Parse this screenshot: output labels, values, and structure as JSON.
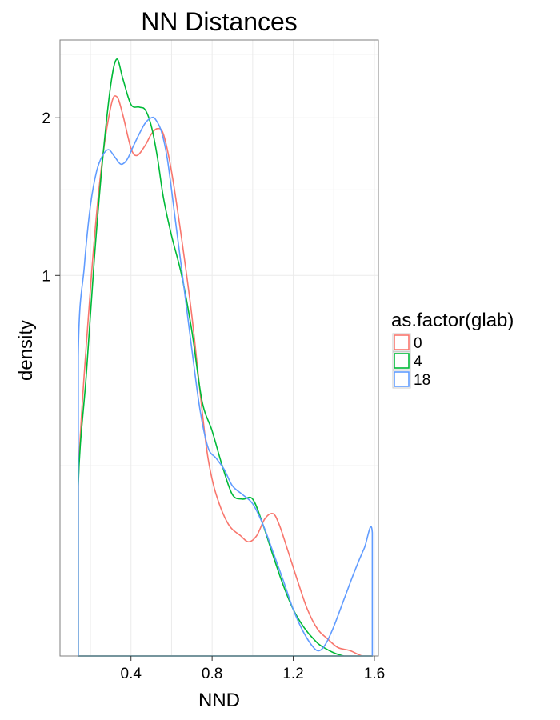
{
  "chart_data": {
    "type": "line",
    "title": "NN Distances",
    "xlabel": "NND",
    "ylabel": "density",
    "x_scale": "linear",
    "y_scale": "sqrt",
    "xlim": [
      0.05,
      1.62
    ],
    "ylim": [
      0.0,
      2.62
    ],
    "x_ticks": [
      0.4,
      0.8,
      1.2,
      1.6
    ],
    "x_tick_labels": [
      "0.4",
      "0.8",
      "1.2",
      "1.6"
    ],
    "y_ticks": [
      1,
      2
    ],
    "y_tick_labels": [
      "1",
      "2"
    ],
    "grid": true,
    "legend": {
      "title": "as.factor(glab)",
      "position": "right"
    },
    "series": [
      {
        "name": "0",
        "color": "#f8766d",
        "x": [
          0.14,
          0.14,
          0.2,
          0.25,
          0.3,
          0.33,
          0.36,
          0.4,
          0.43,
          0.47,
          0.5,
          0.53,
          0.56,
          0.6,
          0.65,
          0.7,
          0.75,
          0.78,
          0.82,
          0.88,
          0.94,
          0.98,
          1.02,
          1.06,
          1.1,
          1.13,
          1.17,
          1.22,
          1.27,
          1.32,
          1.37,
          1.42,
          1.48,
          1.54,
          1.59
        ],
        "y": [
          0.0,
          0.21,
          0.93,
          1.6,
          2.08,
          2.16,
          2.02,
          1.78,
          1.73,
          1.8,
          1.88,
          1.92,
          1.88,
          1.62,
          1.2,
          0.8,
          0.42,
          0.27,
          0.18,
          0.12,
          0.1,
          0.09,
          0.1,
          0.13,
          0.14,
          0.12,
          0.08,
          0.04,
          0.015,
          0.005,
          0.002,
          0.0005,
          0.0002,
          0.0,
          0.0
        ]
      },
      {
        "name": "4",
        "color": "#00ba38",
        "x": [
          0.14,
          0.14,
          0.18,
          0.22,
          0.26,
          0.3,
          0.33,
          0.36,
          0.4,
          0.44,
          0.47,
          0.5,
          0.53,
          0.56,
          0.6,
          0.65,
          0.7,
          0.75,
          0.8,
          0.85,
          0.9,
          0.95,
          1.0,
          1.05,
          1.1,
          1.15,
          1.2,
          1.25,
          1.3,
          1.35,
          1.45,
          1.59
        ],
        "y": [
          0.0,
          0.2,
          0.55,
          1.1,
          1.7,
          2.25,
          2.46,
          2.3,
          2.1,
          2.08,
          2.06,
          1.94,
          1.72,
          1.45,
          1.22,
          1.0,
          0.73,
          0.45,
          0.35,
          0.25,
          0.18,
          0.17,
          0.17,
          0.12,
          0.07,
          0.035,
          0.015,
          0.006,
          0.002,
          0.0005,
          0.0,
          0.0
        ]
      },
      {
        "name": "18",
        "color": "#619cff",
        "x": [
          0.14,
          0.14,
          0.17,
          0.2,
          0.23,
          0.26,
          0.29,
          0.32,
          0.35,
          0.38,
          0.41,
          0.44,
          0.47,
          0.5,
          0.52,
          0.55,
          0.58,
          0.62,
          0.66,
          0.7,
          0.74,
          0.78,
          0.82,
          0.86,
          0.9,
          0.95,
          1.0,
          1.05,
          1.1,
          1.15,
          1.2,
          1.25,
          1.3,
          1.33,
          1.36,
          1.4,
          1.45,
          1.5,
          1.55,
          1.59,
          1.59,
          0.14
        ],
        "y": [
          0.0,
          0.62,
          1.05,
          1.4,
          1.62,
          1.73,
          1.77,
          1.72,
          1.67,
          1.7,
          1.79,
          1.88,
          1.96,
          2.0,
          1.99,
          1.9,
          1.7,
          1.3,
          0.95,
          0.65,
          0.42,
          0.3,
          0.27,
          0.24,
          0.2,
          0.18,
          0.16,
          0.12,
          0.075,
          0.04,
          0.015,
          0.004,
          0.0005,
          0.0002,
          0.001,
          0.006,
          0.022,
          0.048,
          0.08,
          0.105,
          0.0,
          0.0
        ]
      }
    ]
  }
}
